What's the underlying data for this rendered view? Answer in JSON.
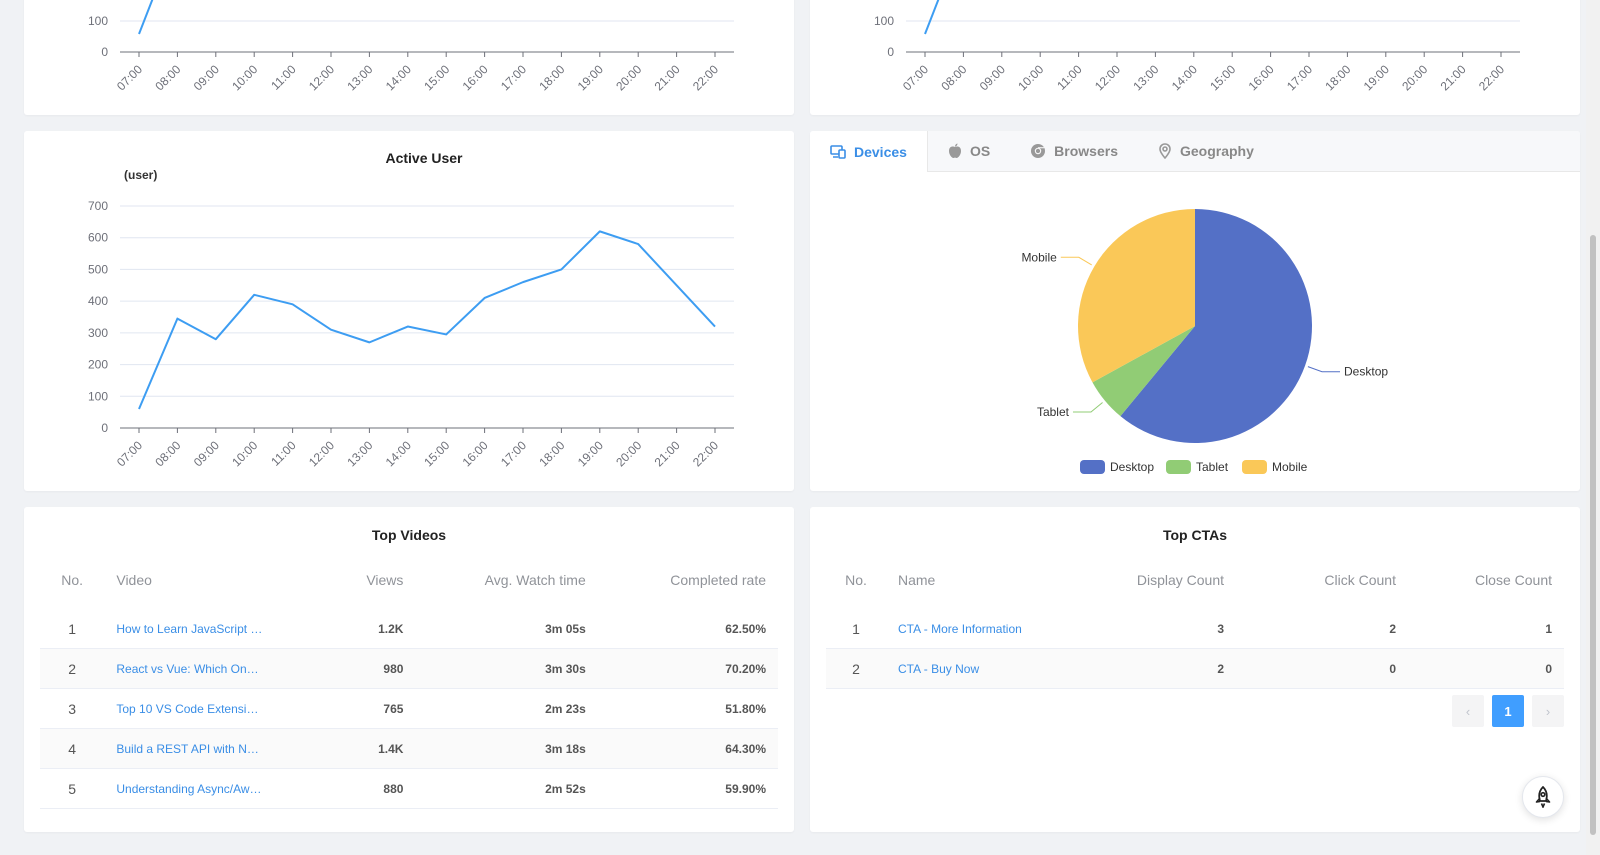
{
  "colors": {
    "line": "#3d9df2",
    "desktop": "#5470c6",
    "tablet": "#91cc75",
    "mobile": "#fac858",
    "accent": "#3a8ee6"
  },
  "time_labels": [
    "07:00",
    "08:00",
    "09:00",
    "10:00",
    "11:00",
    "12:00",
    "13:00",
    "14:00",
    "15:00",
    "16:00",
    "17:00",
    "18:00",
    "19:00",
    "20:00",
    "21:00",
    "22:00"
  ],
  "top_left_chart": {
    "yticks_visible": [
      "100",
      "0"
    ]
  },
  "top_right_chart": {
    "yticks_visible": [
      "100",
      "0"
    ]
  },
  "active_user": {
    "title": "Active User",
    "ylabel": "(user)",
    "chart_data": {
      "type": "line",
      "title": "Active User",
      "ylabel": "(user)",
      "ylim": [
        0,
        700
      ],
      "yticks": [
        0,
        100,
        200,
        300,
        400,
        500,
        600,
        700
      ],
      "x": [
        "07:00",
        "08:00",
        "09:00",
        "10:00",
        "11:00",
        "12:00",
        "13:00",
        "14:00",
        "15:00",
        "16:00",
        "17:00",
        "18:00",
        "19:00",
        "20:00",
        "21:00",
        "22:00"
      ],
      "values": [
        60,
        345,
        280,
        420,
        390,
        310,
        270,
        320,
        295,
        410,
        460,
        500,
        620,
        580,
        450,
        320
      ],
      "grid": true
    }
  },
  "device_tabs": [
    {
      "label": "Devices",
      "icon": "devices-icon",
      "active": true
    },
    {
      "label": "OS",
      "icon": "apple-icon",
      "active": false
    },
    {
      "label": "Browsers",
      "icon": "chrome-icon",
      "active": false
    },
    {
      "label": "Geography",
      "icon": "location-pin-icon",
      "active": false
    }
  ],
  "devices_pie": {
    "chart_data": {
      "type": "pie",
      "categories": [
        "Desktop",
        "Tablet",
        "Mobile"
      ],
      "values": [
        61,
        6,
        33
      ],
      "legend": "bottom"
    },
    "legend": [
      "Desktop",
      "Tablet",
      "Mobile"
    ]
  },
  "top_videos": {
    "title": "Top Videos",
    "columns": [
      "No.",
      "Video",
      "Views",
      "Avg. Watch time",
      "Completed rate"
    ],
    "rows": [
      {
        "no": "1",
        "video": "How to Learn JavaScript …",
        "views": "1.2K",
        "watch": "3m 05s",
        "rate": "62.50%"
      },
      {
        "no": "2",
        "video": "React vs Vue: Which On…",
        "views": "980",
        "watch": "3m 30s",
        "rate": "70.20%"
      },
      {
        "no": "3",
        "video": "Top 10 VS Code Extensi…",
        "views": "765",
        "watch": "2m 23s",
        "rate": "51.80%"
      },
      {
        "no": "4",
        "video": "Build a REST API with N…",
        "views": "1.4K",
        "watch": "3m 18s",
        "rate": "64.30%"
      },
      {
        "no": "5",
        "video": "Understanding Async/Aw…",
        "views": "880",
        "watch": "2m 52s",
        "rate": "59.90%"
      }
    ]
  },
  "top_ctas": {
    "title": "Top CTAs",
    "columns": [
      "No.",
      "Name",
      "Display Count",
      "Click Count",
      "Close Count"
    ],
    "rows": [
      {
        "no": "1",
        "name": "CTA - More Information",
        "display": "3",
        "click": "2",
        "close": "1"
      },
      {
        "no": "2",
        "name": "CTA - Buy Now",
        "display": "2",
        "click": "0",
        "close": "0"
      }
    ],
    "pagination": {
      "prev": "‹",
      "current": "1",
      "next": "›"
    }
  },
  "fab": {
    "icon": "rocket-icon"
  }
}
